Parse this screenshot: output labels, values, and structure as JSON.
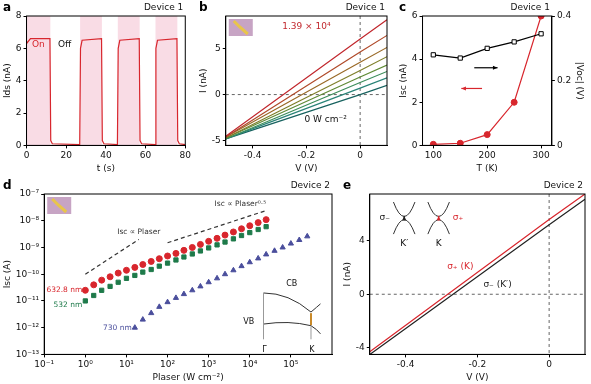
{
  "chart_data": [
    {
      "type": "line",
      "title": "a",
      "subtitle": "Device 1",
      "x_label": "t (s)",
      "y_label": "Ids (nA)",
      "x": [
        0,
        2,
        11.8,
        12.2,
        13,
        26.8,
        27.2,
        28,
        37.8,
        38.2,
        39,
        45.8,
        46.2,
        47,
        56.8,
        57.2,
        58,
        64.8,
        65.2,
        66,
        75.8,
        76.2,
        77,
        80
      ],
      "series": [
        {
          "color": "#d8262d",
          "values": [
            6.3,
            6.6,
            6.6,
            0.3,
            0.1,
            0.05,
            6.0,
            6.5,
            6.6,
            0.3,
            0.1,
            0.05,
            6.0,
            6.5,
            6.6,
            0.3,
            0.1,
            0.05,
            6.0,
            6.5,
            6.6,
            0.3,
            0.1,
            0.05
          ]
        }
      ],
      "on_intervals": [
        [
          0,
          12
        ],
        [
          27,
          38
        ],
        [
          46,
          57
        ],
        [
          65,
          76
        ]
      ],
      "annotations": [
        "On",
        "Off"
      ],
      "xlim": [
        0,
        80
      ],
      "xticks": [
        0,
        20,
        40,
        60,
        80
      ],
      "ylim": [
        0,
        8
      ],
      "yticks": [
        0,
        2,
        4,
        6,
        8
      ],
      "grid": false
    },
    {
      "type": "line",
      "title": "b",
      "subtitle": "Device 1",
      "x_label": "V (V)",
      "y_label": "I (nA)",
      "x": [
        -0.5,
        0,
        0.1
      ],
      "series": [
        {
          "color": "#c1272d",
          "values": [
            -4.5,
            6,
            8.1
          ]
        },
        {
          "color": "#b04a2a",
          "values": [
            -4.6,
            4.6,
            6.4
          ]
        },
        {
          "color": "#9a6a28",
          "values": [
            -4.6,
            3.5,
            5.1
          ]
        },
        {
          "color": "#7f7f2a",
          "values": [
            -4.7,
            2.6,
            4.1
          ]
        },
        {
          "color": "#5f8a35",
          "values": [
            -4.7,
            1.9,
            3.2
          ]
        },
        {
          "color": "#3c8d5a",
          "values": [
            -4.8,
            1.3,
            2.5
          ]
        },
        {
          "color": "#2a8478",
          "values": [
            -4.8,
            0.7,
            1.8
          ]
        },
        {
          "color": "#17625f",
          "values": [
            -4.8,
            0,
            1.0
          ]
        }
      ],
      "annotations": [
        "1.39 × 10⁴",
        "0 W cm⁻²"
      ],
      "xlim": [
        -0.5,
        0.1
      ],
      "xticks": [
        -0.4,
        -0.2,
        0
      ],
      "ylim": [
        -5.5,
        8.5
      ],
      "yticks": [
        -5,
        0,
        5
      ],
      "grid": false
    },
    {
      "type": "line",
      "title": "c",
      "subtitle": "Device 1",
      "x_label": "T (K)",
      "y_label": "Isc (nA)",
      "y2_label": "|Voc| (V)",
      "x": [
        100,
        150,
        200,
        250,
        300
      ],
      "series": [
        {
          "color": "#000000",
          "marker": "open_square",
          "axis": "y2",
          "values": [
            0.28,
            0.27,
            0.3,
            0.32,
            0.345
          ]
        },
        {
          "color": "#d8262d",
          "marker": "circle",
          "values": [
            0.05,
            0.1,
            0.5,
            2,
            6
          ]
        }
      ],
      "xlim": [
        80,
        320
      ],
      "xticks": [
        100,
        200,
        300
      ],
      "ylim": [
        0,
        6
      ],
      "yticks": [
        0,
        2,
        4,
        6
      ],
      "y2lim": [
        0,
        0.4
      ],
      "y2ticks": [
        0,
        0.2,
        0.4
      ],
      "grid": false
    },
    {
      "type": "scatter",
      "title": "d",
      "subtitle": "Device 2",
      "x_label": "Plaser (W cm⁻²)",
      "y_label": "Isc (A)",
      "log": true,
      "series": [
        {
          "name": "632.8 nm",
          "color": "#d8262d",
          "marker": "circle",
          "x": [
            1,
            1.6,
            2.5,
            4,
            6.3,
            10,
            16,
            25,
            40,
            63,
            100,
            160,
            250,
            400,
            630,
            1000,
            1600,
            2500,
            4000,
            6300,
            10000,
            16000,
            25000
          ],
          "values": [
            2.5e-11,
            4e-11,
            6e-11,
            8e-11,
            1.1e-10,
            1.4e-10,
            1.8e-10,
            2.3e-10,
            3e-10,
            3.8e-10,
            4.8e-10,
            6e-10,
            7.8e-10,
            1e-09,
            1.3e-09,
            1.7e-09,
            2.2e-09,
            2.9e-09,
            3.8e-09,
            5e-09,
            6.5e-09,
            8.5e-09,
            1.1e-08
          ]
        },
        {
          "name": "532 nm",
          "color": "#1e7a4a",
          "marker": "square",
          "x": [
            1,
            1.6,
            2.5,
            4,
            6.3,
            10,
            16,
            25,
            40,
            63,
            100,
            160,
            250,
            400,
            630,
            1000,
            1600,
            2500,
            4000,
            6300,
            10000,
            16000,
            25000
          ],
          "values": [
            1e-11,
            1.6e-11,
            2.5e-11,
            3.5e-11,
            5e-11,
            7e-11,
            9e-11,
            1.2e-10,
            1.5e-10,
            2e-10,
            2.6e-10,
            3.4e-10,
            4.4e-10,
            5.7e-10,
            7.4e-10,
            9.6e-10,
            1.25e-09,
            1.6e-09,
            2.1e-09,
            2.8e-09,
            3.6e-09,
            4.7e-09,
            6e-09
          ]
        },
        {
          "name": "730 nm",
          "color": "#4a4e9c",
          "marker": "triangle",
          "x": [
            16,
            25,
            40,
            63,
            100,
            160,
            250,
            400,
            630,
            1000,
            1600,
            2500,
            4000,
            6300,
            10000,
            16000,
            25000,
            40000,
            63000,
            100000,
            160000,
            250000
          ],
          "values": [
            1e-12,
            2e-12,
            3.5e-12,
            6e-12,
            9e-12,
            1.3e-11,
            1.8e-11,
            2.5e-11,
            3.5e-11,
            5e-11,
            7e-11,
            1e-10,
            1.4e-10,
            2e-10,
            2.8e-10,
            3.9e-10,
            5.5e-10,
            7.5e-10,
            1e-09,
            1.4e-09,
            1.9e-09,
            2.6e-09
          ]
        },
        {
          "name": "Isc ∝ Plaser",
          "color": "#333333",
          "line_style": "dashed",
          "x": [
            1,
            20
          ],
          "values": [
            1e-10,
            2e-09
          ]
        },
        {
          "name": "Isc ∝ Plaser⁰·⁵",
          "color": "#333333",
          "line_style": "dashed",
          "x": [
            100,
            25000
          ],
          "values": [
            1.5e-09,
            2.4e-08
          ]
        }
      ],
      "annotations": [
        "CB",
        "VB",
        "Γ",
        "K"
      ],
      "xlim": [
        0.1,
        1000000
      ],
      "xticks": [
        {
          "value": 0.1,
          "label": "10⁻¹"
        },
        {
          "value": 1,
          "label": "10⁰"
        },
        {
          "value": 10,
          "label": "10¹"
        },
        {
          "value": 100,
          "label": "10²"
        },
        {
          "value": 1000,
          "label": "10³"
        },
        {
          "value": 10000,
          "label": "10⁴"
        },
        {
          "value": 100000,
          "label": "10⁵"
        }
      ],
      "ylim": [
        1e-13,
        1e-07
      ],
      "yticks": [
        {
          "value": 1e-13,
          "label": "10⁻¹³"
        },
        {
          "value": 1e-12,
          "label": "10⁻¹²"
        },
        {
          "value": 1e-11,
          "label": "10⁻¹¹"
        },
        {
          "value": 1e-10,
          "label": "10⁻¹⁰"
        },
        {
          "value": 1e-09,
          "label": "10⁻⁹"
        },
        {
          "value": 1e-08,
          "label": "10⁻⁸"
        },
        {
          "value": 1e-07,
          "label": "10⁻⁷"
        }
      ],
      "grid": false
    },
    {
      "type": "line",
      "title": "e",
      "subtitle": "Device 2",
      "x_label": "V (V)",
      "y_label": "I (nA)",
      "x": [
        -0.5,
        0,
        0.1
      ],
      "series": [
        {
          "name": "σ₊ (K)",
          "color": "#d8262d",
          "values": [
            -4.3,
            5.6,
            7.5
          ]
        },
        {
          "name": "σ₋ (K′)",
          "color": "#222222",
          "values": [
            -4.5,
            5.2,
            7.1
          ]
        }
      ],
      "annotations": [
        "K′",
        "K",
        "σ₋",
        "σ₊"
      ],
      "xlim": [
        -0.5,
        0.1
      ],
      "xticks": [
        -0.4,
        -0.2,
        0
      ],
      "ylim": [
        -4.5,
        7.5
      ],
      "yticks": [
        -4,
        0,
        4
      ],
      "grid": false
    }
  ]
}
